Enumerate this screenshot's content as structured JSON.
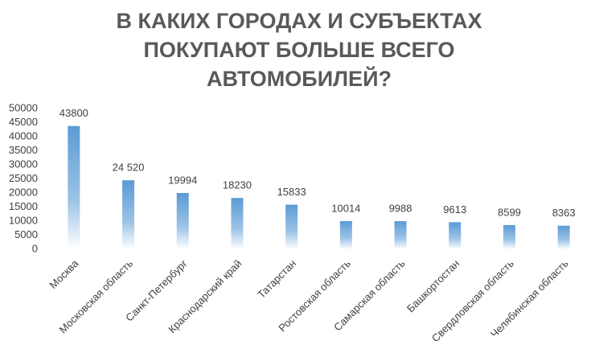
{
  "chart_data": {
    "type": "bar",
    "title": [
      "В КАКИХ ГОРОДАХ И СУБЪЕКТАХ",
      "ПОКУПАЮТ БОЛЬШЕ ВСЕГО",
      "АВТОМОБИЛЕЙ?"
    ],
    "categories": [
      "Москва",
      "Московская область",
      "Санкт-Петербург",
      "Краснодарский край",
      "Татарстан",
      "Ростовская область",
      "Самарская область",
      "Башкортостан",
      "Свердловская область",
      "Челябинская область"
    ],
    "values": [
      43800,
      24520,
      19994,
      18230,
      15833,
      10014,
      9988,
      9613,
      8599,
      8363
    ],
    "value_labels": [
      "43800",
      "24 520",
      "19994",
      "18230",
      "15833",
      "10014",
      "9988",
      "9613",
      "8599",
      "8363"
    ],
    "color": "#5b9bd5",
    "ylim": [
      0,
      50000
    ],
    "yticks": [
      0,
      5000,
      10000,
      15000,
      20000,
      25000,
      30000,
      35000,
      40000,
      45000,
      50000
    ],
    "grid": false
  }
}
